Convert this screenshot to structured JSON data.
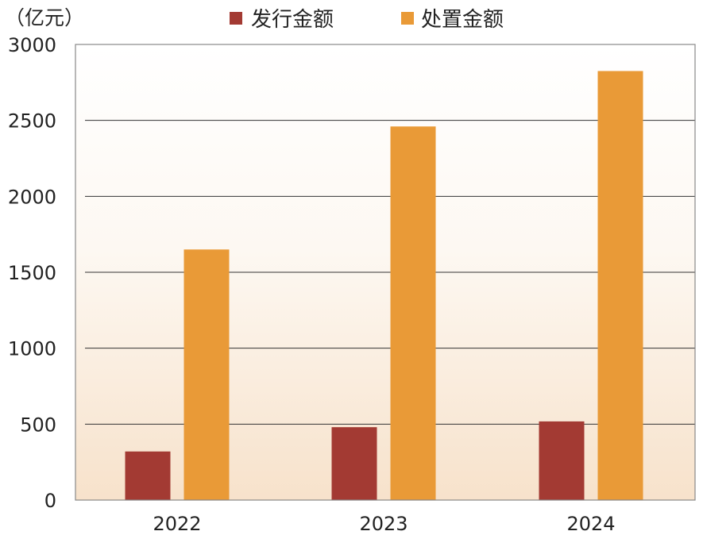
{
  "chart_data": {
    "type": "bar",
    "unit": "（亿元）",
    "categories": [
      "2022",
      "2023",
      "2024"
    ],
    "series": [
      {
        "name": "发行金额",
        "color": "#a33a33",
        "values": [
          320,
          480,
          518
        ]
      },
      {
        "name": "处置金额",
        "color": "#e99a37",
        "values": [
          1650,
          2460,
          2825
        ]
      }
    ],
    "ylim": [
      0,
      3000
    ],
    "yticks": [
      0,
      500,
      1000,
      1500,
      2000,
      2500,
      3000
    ],
    "grid": true,
    "legend": "top"
  }
}
